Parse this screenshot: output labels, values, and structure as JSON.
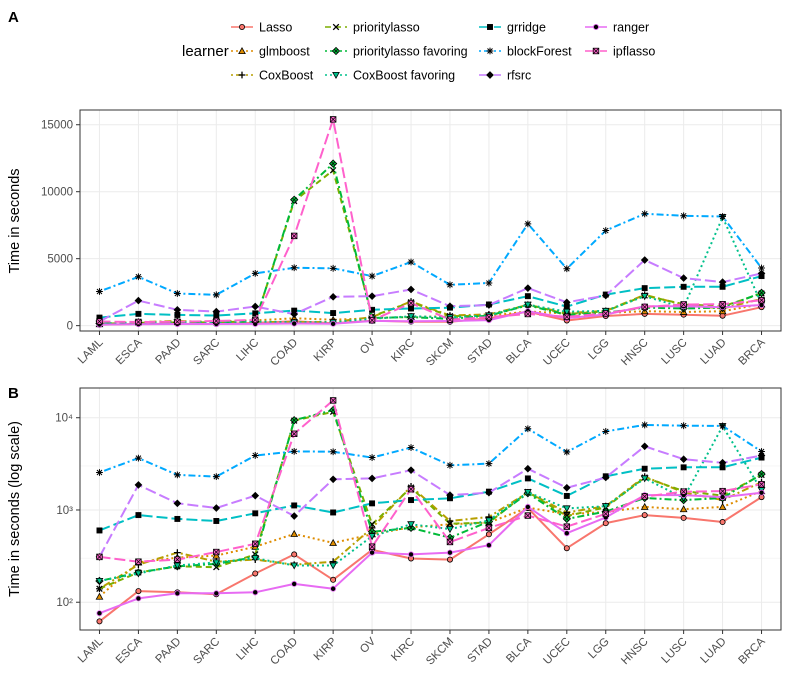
{
  "figure": {
    "panel_a_label": "A",
    "panel_b_label": "B",
    "legend_title": "learner"
  },
  "legend": [
    {
      "name": "Lasso",
      "color": "#F8766D",
      "dash": "solid",
      "shape": "circle"
    },
    {
      "name": "glmboost",
      "color": "#DE8C00",
      "dash": "dotted",
      "shape": "triangle"
    },
    {
      "name": "CoxBoost",
      "color": "#B79F00",
      "dash": "dotdash",
      "shape": "plus"
    },
    {
      "name": "prioritylasso",
      "color": "#7CAE00",
      "dash": "dashed",
      "shape": "cross"
    },
    {
      "name": "prioritylasso favoring",
      "color": "#00BA38",
      "dash": "dotdash",
      "shape": "diamond-cross"
    },
    {
      "name": "CoxBoost favoring",
      "color": "#00C08B",
      "dash": "dotted",
      "shape": "triangle-down"
    },
    {
      "name": "grridge",
      "color": "#00BFC4",
      "dash": "longdash",
      "shape": "square"
    },
    {
      "name": "blockForest",
      "color": "#00A9FF",
      "dash": "dotdash",
      "shape": "star"
    },
    {
      "name": "rfsrc",
      "color": "#C77CFF",
      "dash": "longdash",
      "shape": "diamond"
    },
    {
      "name": "ranger",
      "color": "#E76BF3",
      "dash": "solid",
      "shape": "circle-filled"
    },
    {
      "name": "ipflasso",
      "color": "#FF61CC",
      "dash": "longdash",
      "shape": "square-x"
    }
  ],
  "chart_data": [
    {
      "panel": "A",
      "type": "line",
      "title": "",
      "xlabel": "",
      "ylabel": "Time in seconds",
      "yscale": "linear",
      "ylim": [
        -400,
        16100
      ],
      "yticks": [
        0,
        5000,
        10000,
        15000
      ],
      "ytick_labels": [
        "0",
        "5000",
        "10000",
        "15000"
      ],
      "grid": true
    },
    {
      "panel": "B",
      "type": "line",
      "title": "",
      "xlabel": "",
      "ylabel": "Time in seconds (log scale)",
      "yscale": "log",
      "ylim": [
        50,
        21000
      ],
      "yticks": [
        100,
        1000,
        10000
      ],
      "ytick_labels": [
        "10²",
        "10³",
        "10⁴"
      ],
      "minor_yticks": [
        300,
        3000
      ],
      "grid": true
    }
  ],
  "categories": [
    "LAML",
    "ESCA",
    "PAAD",
    "SARC",
    "LIHC",
    "COAD",
    "KIRP",
    "OV",
    "KIRC",
    "SKCM",
    "STAD",
    "BLCA",
    "UCEC",
    "LGG",
    "HNSC",
    "LUSC",
    "LUAD",
    "BRCA"
  ],
  "series": [
    {
      "name": "Lasso",
      "values": [
        62,
        132,
        128,
        122,
        205,
        330,
        175,
        370,
        298,
        290,
        545,
        1050,
        385,
        720,
        880,
        820,
        740,
        1380
      ]
    },
    {
      "name": "glmboost",
      "values": [
        115,
        270,
        305,
        320,
        400,
        550,
        440,
        545,
        650,
        700,
        730,
        1060,
        900,
        950,
        1080,
        1020,
        1080,
        1600
      ]
    },
    {
      "name": "CoxBoost",
      "values": [
        140,
        255,
        345,
        275,
        290,
        255,
        275,
        640,
        1800,
        760,
        840,
        1550,
        940,
        1100,
        2300,
        1550,
        1280,
        2000
      ]
    },
    {
      "name": "prioritylasso",
      "values": [
        140,
        210,
        245,
        240,
        330,
        9300,
        11600,
        700,
        1750,
        710,
        730,
        1570,
        860,
        1070,
        2250,
        1600,
        1430,
        2400
      ]
    },
    {
      "name": "prioritylasso favoring",
      "values": [
        170,
        210,
        245,
        260,
        310,
        9400,
        12100,
        580,
        640,
        500,
        750,
        1520,
        800,
        960,
        1350,
        1280,
        1350,
        2450
      ]
    },
    {
      "name": "CoxBoost favoring",
      "values": [
        170,
        205,
        250,
        270,
        300,
        250,
        250,
        520,
        700,
        620,
        770,
        1560,
        1040,
        1100,
        2200,
        1350,
        8100,
        1640
      ]
    },
    {
      "name": "grridge",
      "values": [
        600,
        880,
        800,
        760,
        920,
        1120,
        940,
        1180,
        1280,
        1340,
        1580,
        2200,
        1420,
        2320,
        2800,
        2900,
        2900,
        3700
      ]
    },
    {
      "name": "blockForest",
      "values": [
        2550,
        3650,
        2400,
        2300,
        3900,
        4320,
        4280,
        3700,
        4750,
        3050,
        3180,
        7600,
        4250,
        7100,
        8350,
        8200,
        8150,
        4300
      ]
    },
    {
      "name": "rfsrc",
      "values": [
        310,
        1870,
        1180,
        1050,
        1430,
        860,
        2150,
        2200,
        2700,
        1450,
        1540,
        2800,
        1740,
        2250,
        4900,
        3550,
        3250,
        3900
      ]
    },
    {
      "name": "ranger",
      "values": [
        76,
        110,
        125,
        125,
        128,
        158,
        140,
        345,
        330,
        345,
        415,
        1080,
        560,
        830,
        1450,
        1450,
        1380,
        1540
      ]
    },
    {
      "name": "ipflasso",
      "values": [
        310,
        275,
        290,
        350,
        430,
        6700,
        15400,
        400,
        1680,
        450,
        640,
        870,
        660,
        910,
        1400,
        1580,
        1600,
        1900
      ]
    }
  ]
}
